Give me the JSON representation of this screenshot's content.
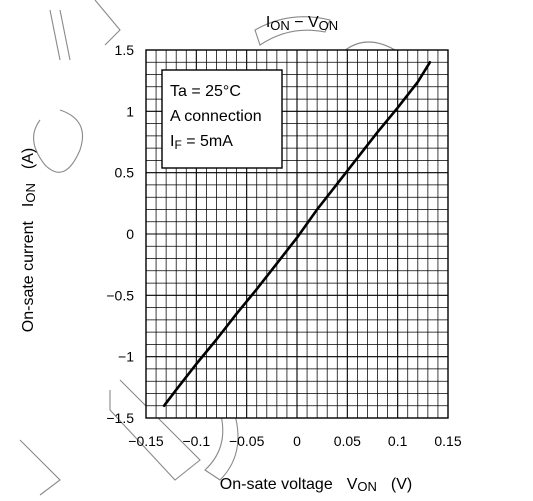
{
  "chart_data": {
    "type": "line",
    "title": "ION − VON",
    "title_parts": {
      "i1": "I",
      "s1": "ON",
      "dash": " − ",
      "v": "V",
      "s2": "ON"
    },
    "xlabel": "On-sate voltage",
    "xlabel_symbol": "V",
    "xlabel_sub": "ON",
    "xlabel_unit": "(V)",
    "ylabel": "On-sate current",
    "ylabel_symbol": "I",
    "ylabel_sub": "ON",
    "ylabel_unit": "(A)",
    "xlim": [
      -0.15,
      0.15
    ],
    "ylim": [
      -1.5,
      1.5
    ],
    "x_ticks": [
      -0.15,
      -0.1,
      -0.05,
      0,
      0.05,
      0.1,
      0.15
    ],
    "x_tick_labels": [
      "−0.15",
      "−0.1",
      "−0.05",
      "0",
      "0.05",
      "0.1",
      "0.15"
    ],
    "y_ticks": [
      1.5,
      1,
      0.5,
      0,
      -0.5,
      -1,
      -1.5
    ],
    "y_tick_labels": [
      "1.5",
      "1",
      "0.5",
      "0",
      "−0.5",
      "−1",
      "−1.5"
    ],
    "grid": true,
    "grid_x_minor_step": 0.01,
    "grid_y_minor_step": 0.1,
    "annotation": {
      "line1": "Ta = 25°C",
      "line2": "A connection",
      "line3_symbol": "I",
      "line3_sub": "F",
      "line3_rest": " = 5mA"
    },
    "series": [
      {
        "x": [
          -0.132,
          -0.12,
          -0.1,
          -0.08,
          -0.06,
          -0.04,
          -0.02,
          0,
          0.02,
          0.04,
          0.06,
          0.08,
          0.1,
          0.12,
          0.132
        ],
        "y": [
          -1.4,
          -1.27,
          -1.06,
          -0.86,
          -0.65,
          -0.45,
          -0.24,
          -0.03,
          0.2,
          0.41,
          0.62,
          0.83,
          1.03,
          1.24,
          1.4
        ]
      }
    ],
    "colors": {
      "line": "#000000",
      "grid": "#000000"
    }
  }
}
